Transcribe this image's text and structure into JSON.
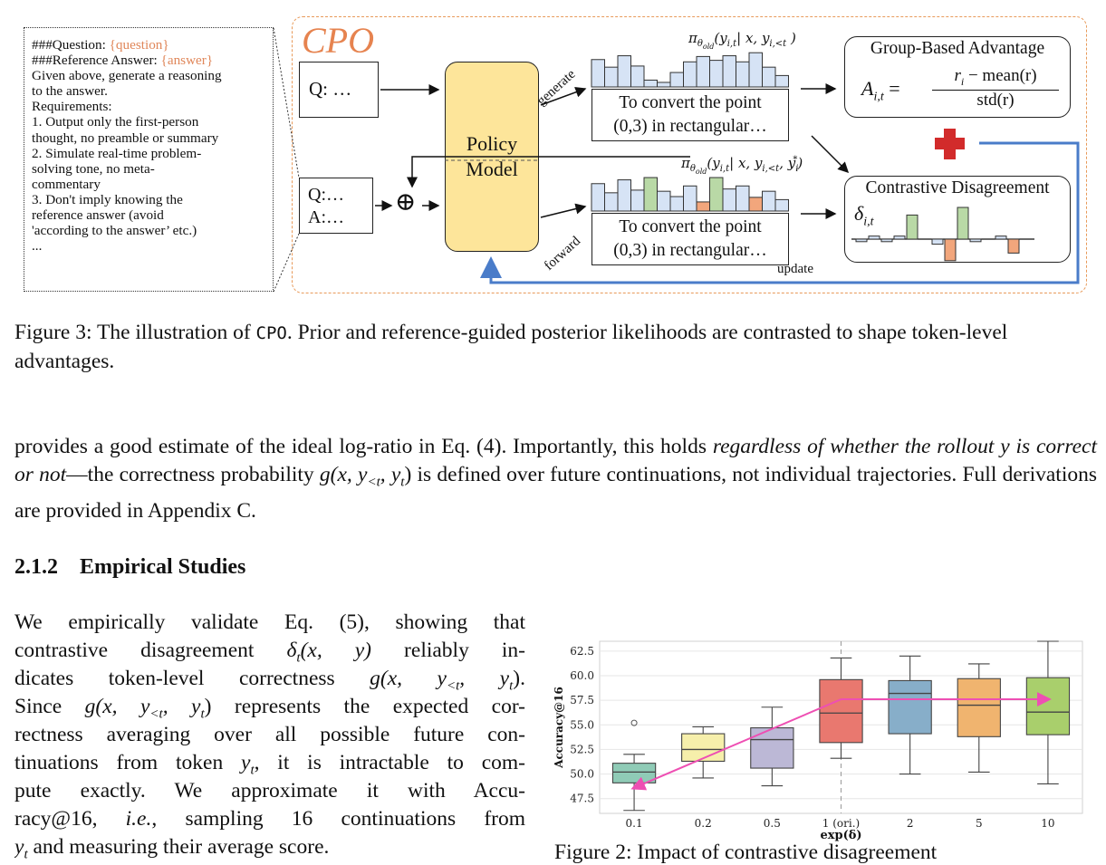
{
  "figure3": {
    "prompt_lines": [
      {
        "pre": "###Question: ",
        "var": "{question}"
      },
      {
        "pre": "###Reference Answer: ",
        "var": "{answer}"
      },
      {
        "pre": "Given above, generate a reasoning",
        "var": ""
      },
      {
        "pre": "to the answer.",
        "var": ""
      },
      {
        "pre": "Requirements:",
        "var": ""
      },
      {
        "pre": "1. Output only the first-person",
        "var": ""
      },
      {
        "pre": "thought, no preamble or summary",
        "var": ""
      },
      {
        "pre": "2. Simulate real-time problem-",
        "var": ""
      },
      {
        "pre": "solving tone, no meta-",
        "var": ""
      },
      {
        "pre": "commentary",
        "var": ""
      },
      {
        "pre": "3. Don't imply knowing the",
        "var": ""
      },
      {
        "pre": "reference answer (avoid",
        "var": ""
      },
      {
        "pre": "'according to the answer’ etc.)",
        "var": ""
      },
      {
        "pre": "...",
        "var": ""
      }
    ],
    "cpo_title": "CPO",
    "q_box": "Q: …",
    "qa_box": [
      "Q:…",
      "A:…"
    ],
    "oplus": "⊕",
    "policy_model": [
      "Policy",
      "Model"
    ],
    "generate_label": "generate",
    "forward_label": "forward",
    "update_label": "update",
    "prior_formula": "π",
    "prior_formula_sub": "θ",
    "prior_formula_subsub": "old",
    "prior_formula_args": "(y",
    "prior_formula_args_sub": "i,t",
    "prior_formula_args_rest": "| x, y",
    "prior_formula_args_sub2": "i,<t",
    "prior_formula_end": " )",
    "posterior_formula_args_rest": "| x, y",
    "posterior_formula_args_sub2": "i,<t",
    "posterior_formula_mid": ", y",
    "posterior_formula_sub3": "i",
    "posterior_formula_sup3": "*",
    "posterior_formula_end": ")",
    "text_box_lines": [
      "To convert the point",
      "(0,3) in rectangular…"
    ],
    "gba_title": "Group-Based Advantage",
    "gba_lhs": "A",
    "gba_lhs_sub": "i,t",
    "gba_eq": "=",
    "gba_num_r": "r",
    "gba_num_r_sub": "i",
    "gba_num_rest": " − mean(r)",
    "gba_den": "std(r)",
    "cd_title": "Contrastive Disagreement",
    "cd_delta": "δ",
    "cd_delta_sub": "i,t",
    "colors": {
      "blue_bar": "#d6e3f5",
      "green_bar": "#b9d9a6",
      "orange_bar": "#f2a67c",
      "policy_fill": "#fde59a",
      "cpo_orange": "#e6834f",
      "plus_red": "#d22b2b",
      "update_blue": "#4a7cc9"
    },
    "prior_bars": [
      0.72,
      0.52,
      0.82,
      0.55,
      0.18,
      0.12,
      0.38,
      0.66,
      0.8,
      0.7,
      0.82,
      0.66,
      0.9,
      0.52,
      0.3
    ],
    "posterior_bars": [
      {
        "v": 0.72,
        "c": "blue"
      },
      {
        "v": 0.48,
        "c": "blue"
      },
      {
        "v": 0.82,
        "c": "blue"
      },
      {
        "v": 0.55,
        "c": "blue"
      },
      {
        "v": 0.88,
        "c": "green"
      },
      {
        "v": 0.52,
        "c": "blue"
      },
      {
        "v": 0.38,
        "c": "blue"
      },
      {
        "v": 0.66,
        "c": "blue"
      },
      {
        "v": 0.24,
        "c": "orange"
      },
      {
        "v": 0.88,
        "c": "green"
      },
      {
        "v": 0.58,
        "c": "blue"
      },
      {
        "v": 0.66,
        "c": "blue"
      },
      {
        "v": 0.36,
        "c": "orange"
      },
      {
        "v": 0.52,
        "c": "blue"
      },
      {
        "v": 0.3,
        "c": "blue"
      }
    ],
    "cd_bars": [
      {
        "v": -0.1,
        "c": "blue"
      },
      {
        "v": 0.12,
        "c": "blue"
      },
      {
        "v": -0.1,
        "c": "blue"
      },
      {
        "v": 0.12,
        "c": "blue"
      },
      {
        "v": 0.95,
        "c": "green"
      },
      {
        "v": 0,
        "c": "none"
      },
      {
        "v": -0.2,
        "c": "blue"
      },
      {
        "v": -0.85,
        "c": "orange"
      },
      {
        "v": 1.25,
        "c": "green"
      },
      {
        "v": -0.1,
        "c": "blue"
      },
      {
        "v": 0,
        "c": "none"
      },
      {
        "v": 0.12,
        "c": "blue"
      },
      {
        "v": -0.55,
        "c": "orange"
      }
    ]
  },
  "caption": {
    "label": "Figure 3: The illustration of ",
    "code": "CPO",
    "rest": ". Prior and reference-guided posterior likelihoods are contrasted to shape token-level advantages."
  },
  "para1": {
    "p1": "provides a good estimate of the ideal log-ratio in Eq. (4).  Importantly, this holds ",
    "em1": "regardless of whether the rollout ",
    "em_y": "y",
    "em2": " is correct or not",
    "p2": "—the correctness probability ",
    "math1": "g(x, y",
    "math1_sub": "<t",
    "math1_rest": ", y",
    "math1_sub2": "t",
    "math1_end": ")",
    "p3": " is defined over future continuations, not individual trajectories. Full derivations are provided in Appendix C."
  },
  "heading": {
    "number": "2.1.2",
    "title": "Empirical Studies"
  },
  "para2_lines": [
    "We empirically validate Eq. (5), showing that",
    "contrastive disagreement δ_t(x, y) reliably in-",
    "dicates token-level correctness g(x, y_<t, y_t).",
    "Since g(x, y_<t, y_t) represents the expected cor-",
    "rectness averaging over all possible future con-",
    "tinuations from token y_t, it is intractable to com-",
    "pute exactly.  We approximate it with Accu-",
    "racy@16, i.e., sampling 16 continuations from",
    "y_t and measuring their average score."
  ],
  "para2": {
    "l1": "We empirically validate Eq. (5), showing that",
    "l2a": "contrastive disagreement ",
    "l2m": "δ",
    "l2s": "t",
    "l2r": "(x, y)",
    "l2b": " reliably in-",
    "l3a": "dicates token-level correctness ",
    "l3m": "g(x, y",
    "l3s": "<t",
    "l3m2": ", y",
    "l3s2": "t",
    "l3e": ").",
    "l4a": "Since ",
    "l4m": "g(x, y",
    "l4s": "<t",
    "l4m2": ", y",
    "l4s2": "t",
    "l4e": ")",
    "l4b": " represents the expected cor-",
    "l5": "rectness averaging over all possible future con-",
    "l6a": "tinuations from token ",
    "l6m": "y",
    "l6s": "t",
    "l6b": ", it is intractable to com-",
    "l7": "pute exactly.  We approximate it with Accu-",
    "l8a": "racy@16, ",
    "l8e": "i.e.",
    "l8b": ", sampling 16 continuations from",
    "l9m": "y",
    "l9s": "t",
    "l9b": " and measuring their average score."
  },
  "chart_data": {
    "type": "box",
    "categories": [
      "0.1",
      "0.2",
      "0.5",
      "1 (ori.)",
      "2",
      "5",
      "10"
    ],
    "xlabel": "exp(δ)",
    "ylabel": "Accuracy@16",
    "ylim": [
      46.0,
      63.5
    ],
    "yticks": [
      "47.5",
      "50.0",
      "52.5",
      "55.0",
      "57.5",
      "60.0",
      "62.5"
    ],
    "ytick_values": [
      47.5,
      50.0,
      52.5,
      55.0,
      57.5,
      60.0,
      62.5
    ],
    "grid": true,
    "reference_line_at": "1 (ori.)",
    "boxes": [
      {
        "min": 46.3,
        "q1": 49.1,
        "median": 50.2,
        "q3": 51.1,
        "max": 52.0,
        "outliers": [
          55.2
        ],
        "color": "#8fcbb6"
      },
      {
        "min": 49.6,
        "q1": 51.3,
        "median": 52.5,
        "q3": 54.1,
        "max": 54.8,
        "outliers": [],
        "color": "#f6efab"
      },
      {
        "min": 48.8,
        "q1": 50.6,
        "median": 53.5,
        "q3": 54.7,
        "max": 56.8,
        "outliers": [],
        "color": "#bcb8d6"
      },
      {
        "min": 51.6,
        "q1": 53.2,
        "median": 56.2,
        "q3": 59.6,
        "max": 61.8,
        "outliers": [],
        "color": "#e9786f"
      },
      {
        "min": 50.0,
        "q1": 54.1,
        "median": 58.2,
        "q3": 59.5,
        "max": 62.0,
        "outliers": [],
        "color": "#87aec9"
      },
      {
        "min": 50.2,
        "q1": 53.8,
        "median": 57.0,
        "q3": 59.7,
        "max": 61.2,
        "outliers": [],
        "color": "#f0b46f"
      },
      {
        "min": 49.0,
        "q1": 54.0,
        "median": 56.3,
        "q3": 59.8,
        "max": 63.5,
        "outliers": [],
        "color": "#a9cf6c"
      }
    ],
    "arrows": [
      {
        "from": [
          "1 (ori.)",
          57.6
        ],
        "to": [
          "0.1",
          48.6
        ],
        "color": "#ee4fb3"
      },
      {
        "from": [
          "1 (ori.)",
          57.6
        ],
        "to": [
          "10",
          57.6
        ],
        "color": "#ee4fb3"
      }
    ]
  },
  "fig4_caption": "Figure 2: Impact of contrastive disagreement"
}
